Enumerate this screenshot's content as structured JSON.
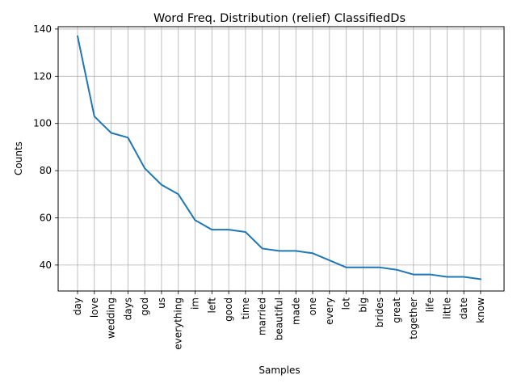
{
  "chart_data": {
    "type": "line",
    "title": "Word Freq. Distribution (relief) ClassifiedDs",
    "xlabel": "Samples",
    "ylabel": "Counts",
    "categories": [
      "day",
      "love",
      "wedding",
      "days",
      "god",
      "us",
      "everything",
      "im",
      "left",
      "good",
      "time",
      "married",
      "beautiful",
      "made",
      "one",
      "every",
      "lot",
      "big",
      "brides",
      "great",
      "together",
      "life",
      "little",
      "date",
      "know"
    ],
    "series": [
      {
        "values": [
          137,
          103,
          96,
          94,
          81,
          74,
          70,
          59,
          55,
          55,
          54,
          47,
          46,
          46,
          45,
          42,
          39,
          39,
          39,
          38,
          36,
          36,
          35,
          35,
          34
        ]
      }
    ],
    "ylim": [
      29,
      141
    ],
    "yticks": [
      40,
      60,
      80,
      100,
      120,
      140
    ],
    "grid": true,
    "line_color": "#1f77b4",
    "grid_color": "#b0b0b0"
  }
}
